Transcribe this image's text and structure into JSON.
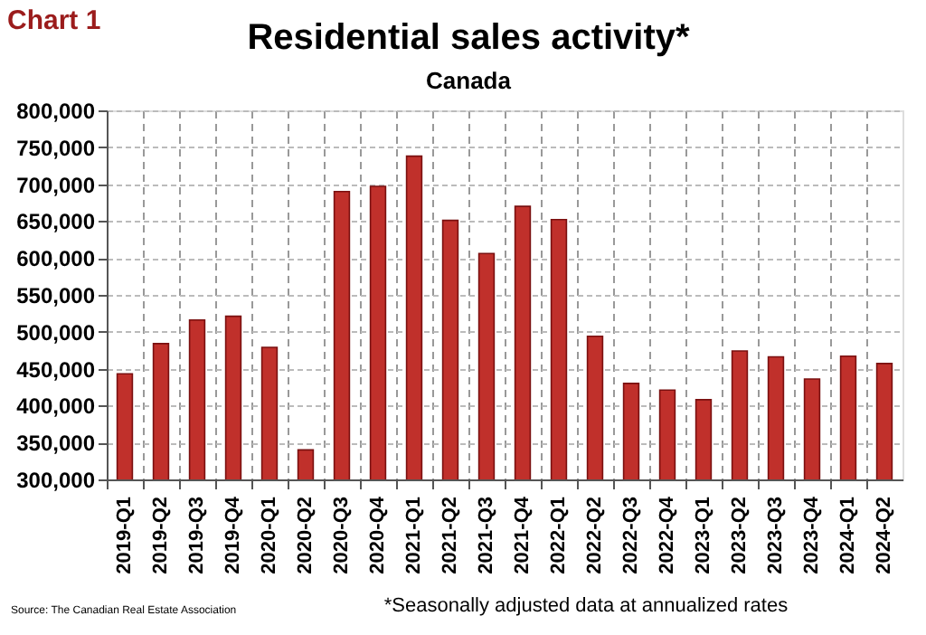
{
  "chart_data": {
    "type": "bar",
    "title": "Residential sales activity*",
    "subtitle": "Canada",
    "categories": [
      "2019-Q1",
      "2019-Q2",
      "2019-Q3",
      "2019-Q4",
      "2020-Q1",
      "2020-Q2",
      "2020-Q3",
      "2020-Q4",
      "2021-Q1",
      "2021-Q2",
      "2021-Q3",
      "2021-Q4",
      "2022-Q1",
      "2022-Q2",
      "2022-Q3",
      "2022-Q4",
      "2023-Q1",
      "2023-Q2",
      "2023-Q3",
      "2023-Q4",
      "2024-Q1",
      "2024-Q2"
    ],
    "values": [
      443000,
      484000,
      516000,
      521000,
      479000,
      340000,
      690000,
      697000,
      738000,
      651000,
      606000,
      670000,
      652000,
      494000,
      430000,
      421000,
      408000,
      474000,
      466000,
      436000,
      467000,
      457000
    ],
    "color": "#c0302b",
    "ylim": [
      300000,
      800000
    ],
    "yticks": [
      {
        "value": 300000,
        "label": "300,000"
      },
      {
        "value": 350000,
        "label": "350,000"
      },
      {
        "value": 400000,
        "label": "400,000"
      },
      {
        "value": 450000,
        "label": "450,000"
      },
      {
        "value": 500000,
        "label": "500,000"
      },
      {
        "value": 550000,
        "label": "550,000"
      },
      {
        "value": 600000,
        "label": "600,000"
      },
      {
        "value": 650000,
        "label": "650,000"
      },
      {
        "value": 700000,
        "label": "700,000"
      },
      {
        "value": 750000,
        "label": "750,000"
      },
      {
        "value": 800000,
        "label": "800,000"
      }
    ],
    "grid": true,
    "annotations": [
      "Chart 1",
      "Source: The Canadian Real Estate Association",
      "*Seasonally adjusted data at annualized rates"
    ]
  }
}
